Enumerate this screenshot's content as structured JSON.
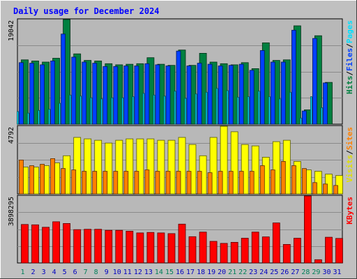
{
  "chart_data": {
    "type": "bar",
    "title": "Daily usage for December 2024",
    "x": [
      "1",
      "2",
      "3",
      "4",
      "5",
      "6",
      "7",
      "8",
      "9",
      "10",
      "11",
      "12",
      "13",
      "14",
      "15",
      "16",
      "17",
      "18",
      "19",
      "20",
      "21",
      "22",
      "23",
      "24",
      "25",
      "26",
      "27",
      "28",
      "29",
      "30",
      "31"
    ],
    "weekend_days": [
      1,
      7,
      8,
      14,
      15,
      21,
      22,
      28,
      29
    ],
    "panels": [
      {
        "id": "hits",
        "ymax_label": "19042",
        "ymax": 19042,
        "axis_labels": [
          {
            "text": "Hits",
            "color": "#008040"
          },
          {
            "text": "/",
            "color": "#000000"
          },
          {
            "text": "Files",
            "color": "#0040ff"
          },
          {
            "text": "/",
            "color": "#000000"
          },
          {
            "text": "Pages",
            "color": "#00e0ff"
          }
        ],
        "series": [
          {
            "name": "Hits",
            "color": "#008040",
            "values": [
              11700,
              11500,
              11300,
              12000,
              19042,
              12800,
              11600,
              11500,
              11000,
              10800,
              10900,
              11000,
              12100,
              10900,
              10700,
              13500,
              10700,
              12900,
              11300,
              11000,
              10800,
              11200,
              10100,
              14800,
              11600,
              11700,
              17900,
              2600,
              16100,
              7600,
              0
            ]
          },
          {
            "name": "Files",
            "color": "#0040ff",
            "values": [
              11200,
              11100,
              10800,
              11500,
              16400,
              12200,
              11300,
              11100,
              10500,
              10500,
              10600,
              10600,
              11000,
              10800,
              10600,
              13300,
              10600,
              11100,
              10900,
              10600,
              10700,
              10900,
              9800,
              13400,
              11300,
              11300,
              17100,
              2400,
              15600,
              7500,
              0
            ]
          },
          {
            "name": "Pages",
            "color": "#00e0ff",
            "values": [
              2300,
              2000,
              2500,
              2700,
              3800,
              5300,
              5100,
              4800,
              4600,
              4800,
              4800,
              5000,
              5600,
              5300,
              5100,
              6000,
              4700,
              5500,
              5800,
              6500,
              6100,
              4900,
              5000,
              6000,
              5000,
              4600,
              5800,
              1100,
              5000,
              3000,
              0
            ]
          }
        ]
      },
      {
        "id": "visits",
        "ymax_label": "4792",
        "ymax": 4792,
        "axis_labels": [
          {
            "text": "Visits",
            "color": "#e0e000"
          },
          {
            "text": "/",
            "color": "#000000"
          },
          {
            "text": "Sites",
            "color": "#ff8000"
          }
        ],
        "series": [
          {
            "name": "Visits",
            "color": "#ffff00",
            "values": [
              1900,
              1900,
              2000,
              2200,
              2700,
              4000,
              3900,
              3800,
              3600,
              3800,
              3900,
              3900,
              3900,
              3800,
              3800,
              4000,
              3500,
              2700,
              4000,
              4792,
              4400,
              3500,
              3400,
              2600,
              3700,
              3800,
              2300,
              1700,
              1600,
              1400,
              1300
            ]
          },
          {
            "name": "Sites",
            "color": "#ff8000",
            "values": [
              2400,
              2000,
              2100,
              2500,
              1800,
              1700,
              1600,
              1600,
              1600,
              1600,
              1600,
              1600,
              1700,
              1600,
              1600,
              1600,
              1600,
              1600,
              1500,
              1600,
              1600,
              1600,
              1600,
              2000,
              1700,
              2300,
              2000,
              1800,
              800,
              700,
              600
            ]
          }
        ]
      },
      {
        "id": "kbytes",
        "ymax_label": "3898295",
        "ymax": 3898295,
        "axis_labels": [
          {
            "text": "KBytes",
            "color": "#ff0000"
          }
        ],
        "series": [
          {
            "name": "KBytes",
            "color": "#ff0000",
            "values": [
              2240000,
              2220000,
              2080000,
              2400000,
              2300000,
              1940000,
              1960000,
              1960000,
              1900000,
              1900000,
              1850000,
              1750000,
              1780000,
              1750000,
              1710000,
              2260000,
              1530000,
              1800000,
              1260000,
              1140000,
              1200000,
              1440000,
              1800000,
              1520000,
              2330000,
              1080000,
              1440000,
              3898295,
              190000,
              1500000,
              1430000
            ]
          }
        ]
      }
    ]
  }
}
